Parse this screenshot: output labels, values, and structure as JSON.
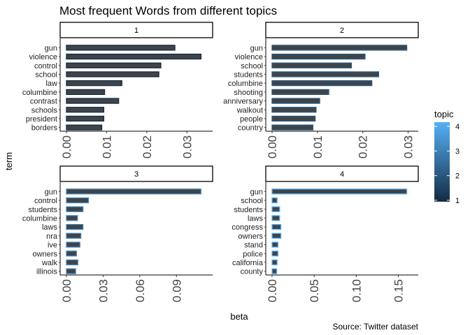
{
  "title": "Most frequent Words from different topics",
  "caption": "Source: Twitter dataset",
  "xlabel": "beta",
  "ylabel": "term",
  "legend": {
    "title": "topic",
    "ticks": [
      "1",
      "2",
      "3",
      "4"
    ],
    "placement": "right",
    "color_low": "#132B43",
    "color_high": "#56B1F7"
  },
  "chart_data": [
    {
      "type": "bar",
      "orientation": "horizontal",
      "panel": "1",
      "categories": [
        "gun",
        "violence",
        "control",
        "school",
        "law",
        "columbine",
        "contrast",
        "schools",
        "president",
        "borders"
      ],
      "values": [
        0.027,
        0.0335,
        0.0235,
        0.023,
        0.0138,
        0.0095,
        0.013,
        0.0093,
        0.0093,
        0.0088
      ],
      "xlim": [
        0,
        0.035
      ],
      "xticks": [
        "0.00",
        "0.01",
        "0.02",
        "0.03"
      ],
      "xtick_values": [
        0,
        0.01,
        0.02,
        0.03
      ],
      "topic": 1
    },
    {
      "type": "bar",
      "orientation": "horizontal",
      "panel": "2",
      "categories": [
        "gun",
        "violence",
        "school",
        "students",
        "columbine",
        "shooting",
        "anniversary",
        "walkout",
        "people",
        "country"
      ],
      "values": [
        0.0297,
        0.0205,
        0.0175,
        0.0235,
        0.022,
        0.0125,
        0.0105,
        0.0097,
        0.0095,
        0.009
      ],
      "xlim": [
        0,
        0.031
      ],
      "xticks": [
        "0.00",
        "0.01",
        "0.02",
        "0.03"
      ],
      "xtick_values": [
        0,
        0.01,
        0.02,
        0.03
      ],
      "topic": 2
    },
    {
      "type": "bar",
      "orientation": "horizontal",
      "panel": "3",
      "categories": [
        "gun",
        "control",
        "students",
        "columbine",
        "laws",
        "nra",
        "ive",
        "owners",
        "walk",
        "illinois"
      ],
      "values": [
        0.11,
        0.018,
        0.0135,
        0.009,
        0.0135,
        0.0118,
        0.011,
        0.0082,
        0.0093,
        0.0075
      ],
      "xlim": [
        0,
        0.115
      ],
      "xticks": [
        "0.00",
        "0.03",
        "0.06",
        "0.09"
      ],
      "xtick_values": [
        0,
        0.03,
        0.06,
        0.09
      ],
      "topic": 3
    },
    {
      "type": "bar",
      "orientation": "horizontal",
      "panel": "4",
      "categories": [
        "gun",
        "school",
        "students",
        "laws",
        "congress",
        "owners",
        "stand",
        "police",
        "california",
        "county"
      ],
      "values": [
        0.16,
        0.006,
        0.009,
        0.009,
        0.0105,
        0.0105,
        0.007,
        0.007,
        0.006,
        0.0055
      ],
      "xlim": [
        0,
        0.167
      ],
      "xticks": [
        "0.00",
        "0.05",
        "0.10",
        "0.15"
      ],
      "xtick_values": [
        0,
        0.05,
        0.1,
        0.15
      ],
      "topic": 4
    }
  ]
}
